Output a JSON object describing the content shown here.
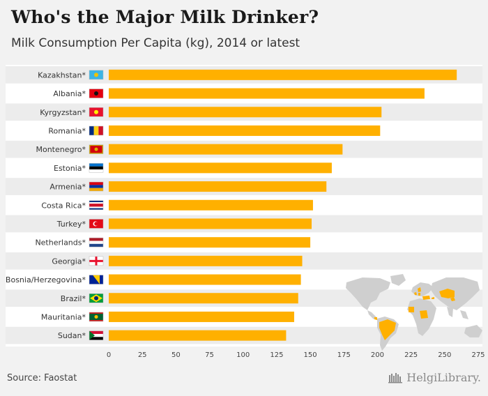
{
  "header": {
    "title": "Who's the Major Milk Drinker?",
    "subtitle": "Milk Consumption Per Capita (kg), 2014 or latest"
  },
  "footer": {
    "source": "Source: Faostat",
    "logo": "HelgiLibrary."
  },
  "colors": {
    "bar": "#ffb000",
    "stripe": "#ececec",
    "map_land": "#cfcfcf",
    "map_highlight": "#ffb000"
  },
  "chart_data": {
    "type": "bar",
    "orientation": "horizontal",
    "title": "Who's the Major Milk Drinker?",
    "subtitle": "Milk Consumption Per Capita (kg), 2014 or latest",
    "categories": [
      "Kazakhstan*",
      "Albania*",
      "Kyrgyzstan*",
      "Romania*",
      "Montenegro*",
      "Estonia*",
      "Armenia*",
      "Costa Rica*",
      "Turkey*",
      "Netherlands*",
      "Georgia*",
      "Bosnia/Herzegovina*",
      "Brazil*",
      "Mauritania*",
      "Sudan*"
    ],
    "values": [
      259,
      235,
      203,
      202,
      174,
      166,
      162,
      152,
      151,
      150,
      144,
      143,
      141,
      138,
      132
    ],
    "xlim": [
      0,
      275
    ],
    "xticks": [
      0,
      25,
      50,
      75,
      100,
      125,
      150,
      175,
      200,
      225,
      250,
      275
    ],
    "xlabel": "",
    "ylabel": "",
    "flags": [
      "kazakhstan-flag",
      "albania-flag",
      "kyrgyzstan-flag",
      "romania-flag",
      "montenegro-flag",
      "estonia-flag",
      "armenia-flag",
      "costa-rica-flag",
      "turkey-flag",
      "netherlands-flag",
      "georgia-flag",
      "bosnia-herzegovina-flag",
      "brazil-flag",
      "mauritania-flag",
      "sudan-flag"
    ],
    "grid": false,
    "legend": "none"
  }
}
